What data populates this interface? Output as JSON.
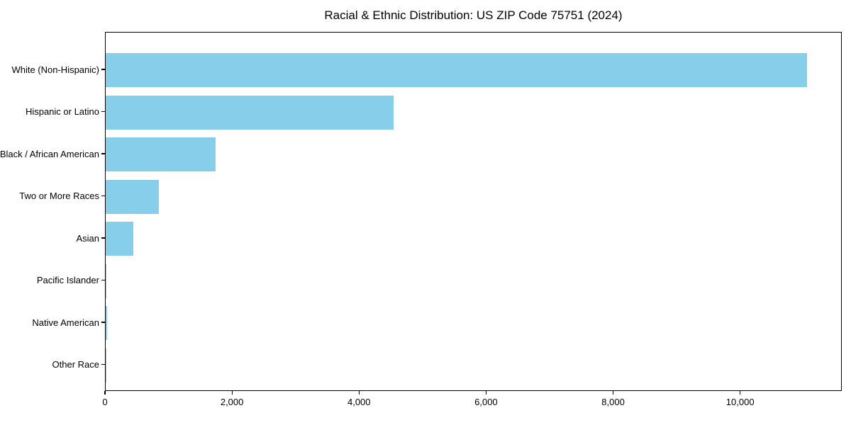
{
  "chart_data": {
    "type": "bar",
    "orientation": "horizontal",
    "title": "Racial & Ethnic Distribution: US ZIP Code 75751 (2024)",
    "categories": [
      "White (Non-Hispanic)",
      "Hispanic or Latino",
      "Black / African American",
      "Two or More Races",
      "Asian",
      "Pacific Islander",
      "Native American",
      "Other Race"
    ],
    "values": [
      11060,
      4540,
      1730,
      840,
      435,
      15,
      20,
      10
    ],
    "xlabel": "",
    "ylabel": "",
    "xlim": [
      0,
      11600
    ],
    "xticks": [
      0,
      2000,
      4000,
      6000,
      8000,
      10000
    ],
    "xtick_labels": [
      "0",
      "2,000",
      "4,000",
      "6,000",
      "8,000",
      "10,000"
    ],
    "bar_color": "#87CEEB",
    "grid": false,
    "legend": null
  }
}
